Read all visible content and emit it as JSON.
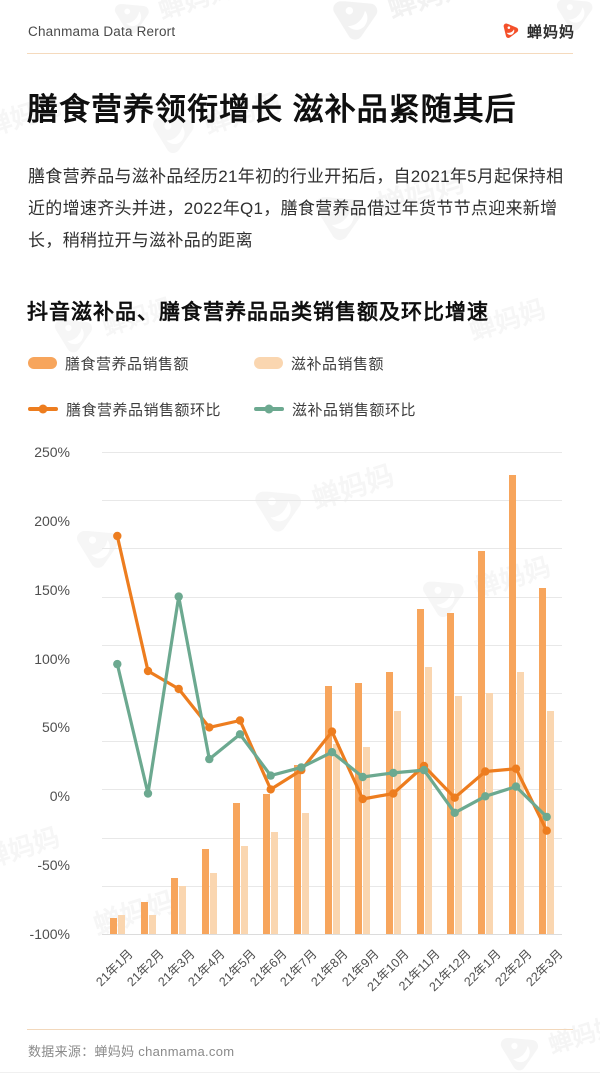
{
  "page": {
    "header": {
      "brand_text": "Chanmama Data Rerort",
      "logo_text": "蝉妈妈"
    },
    "title": "膳食营养领衔增长 滋补品紧随其后",
    "paragraph": "膳食营养品与滋补品经历21年初的行业开拓后，自2021年5月起保持相近的增速齐头并进，2022年Q1，膳食营养品借过年货节节点迎来新增长，稍稍拉开与滋补品的距离",
    "watermark_text": "蝉妈妈",
    "footer": {
      "source_text": "数据来源：蝉妈妈 chanmama.com"
    },
    "colors": {
      "brand": "#F4502A",
      "divider": "#F5DABD",
      "grid": "#E8E8E8"
    }
  },
  "chart_data": {
    "type": "bar+line combo",
    "title": "抖音滋补品、膳食营养品品类销售额及环比增速",
    "categories": [
      "21年1月",
      "21年2月",
      "21年3月",
      "21年4月",
      "21年5月",
      "21年6月",
      "21年7月",
      "21年8月",
      "21年9月",
      "21年10月",
      "21年11月",
      "21年12月",
      "22年1月",
      "22年2月",
      "22年3月"
    ],
    "series": [
      {
        "name": "膳食营养品销售额",
        "type": "bar",
        "color": "#F7A55C",
        "values": [
          -88,
          -77,
          -59,
          -38,
          -5,
          2,
          23,
          80,
          82,
          90,
          136,
          133,
          178,
          233,
          151
        ]
      },
      {
        "name": "滋补品销售额",
        "type": "bar",
        "color": "#FAD6B0",
        "values": [
          -86,
          -86,
          -65,
          -56,
          -36,
          -26,
          -12,
          38,
          36,
          62,
          94,
          73,
          75,
          90,
          62
        ]
      },
      {
        "name": "膳食营养品销售额环比",
        "type": "line",
        "color": "#ED7D1F",
        "values": [
          189,
          91,
          78,
          50,
          55,
          5,
          19,
          47,
          -2,
          2,
          22,
          -1,
          18,
          20,
          -25
        ]
      },
      {
        "name": "滋补品销售额环比",
        "type": "line",
        "color": "#6CA990",
        "values": [
          96,
          2,
          145,
          27,
          45,
          15,
          21,
          32,
          14,
          17,
          19,
          -12,
          0,
          7,
          -15
        ]
      }
    ],
    "xlabel": "",
    "ylabel": "",
    "ylim": [
      -100,
      250
    ],
    "y_ticks": [
      250,
      200,
      150,
      100,
      50,
      0,
      -50,
      -100
    ],
    "y_tick_suffix": "%",
    "gridline_count": 11,
    "bar_baseline": -100,
    "grid": true,
    "legend_position": "top-left"
  }
}
